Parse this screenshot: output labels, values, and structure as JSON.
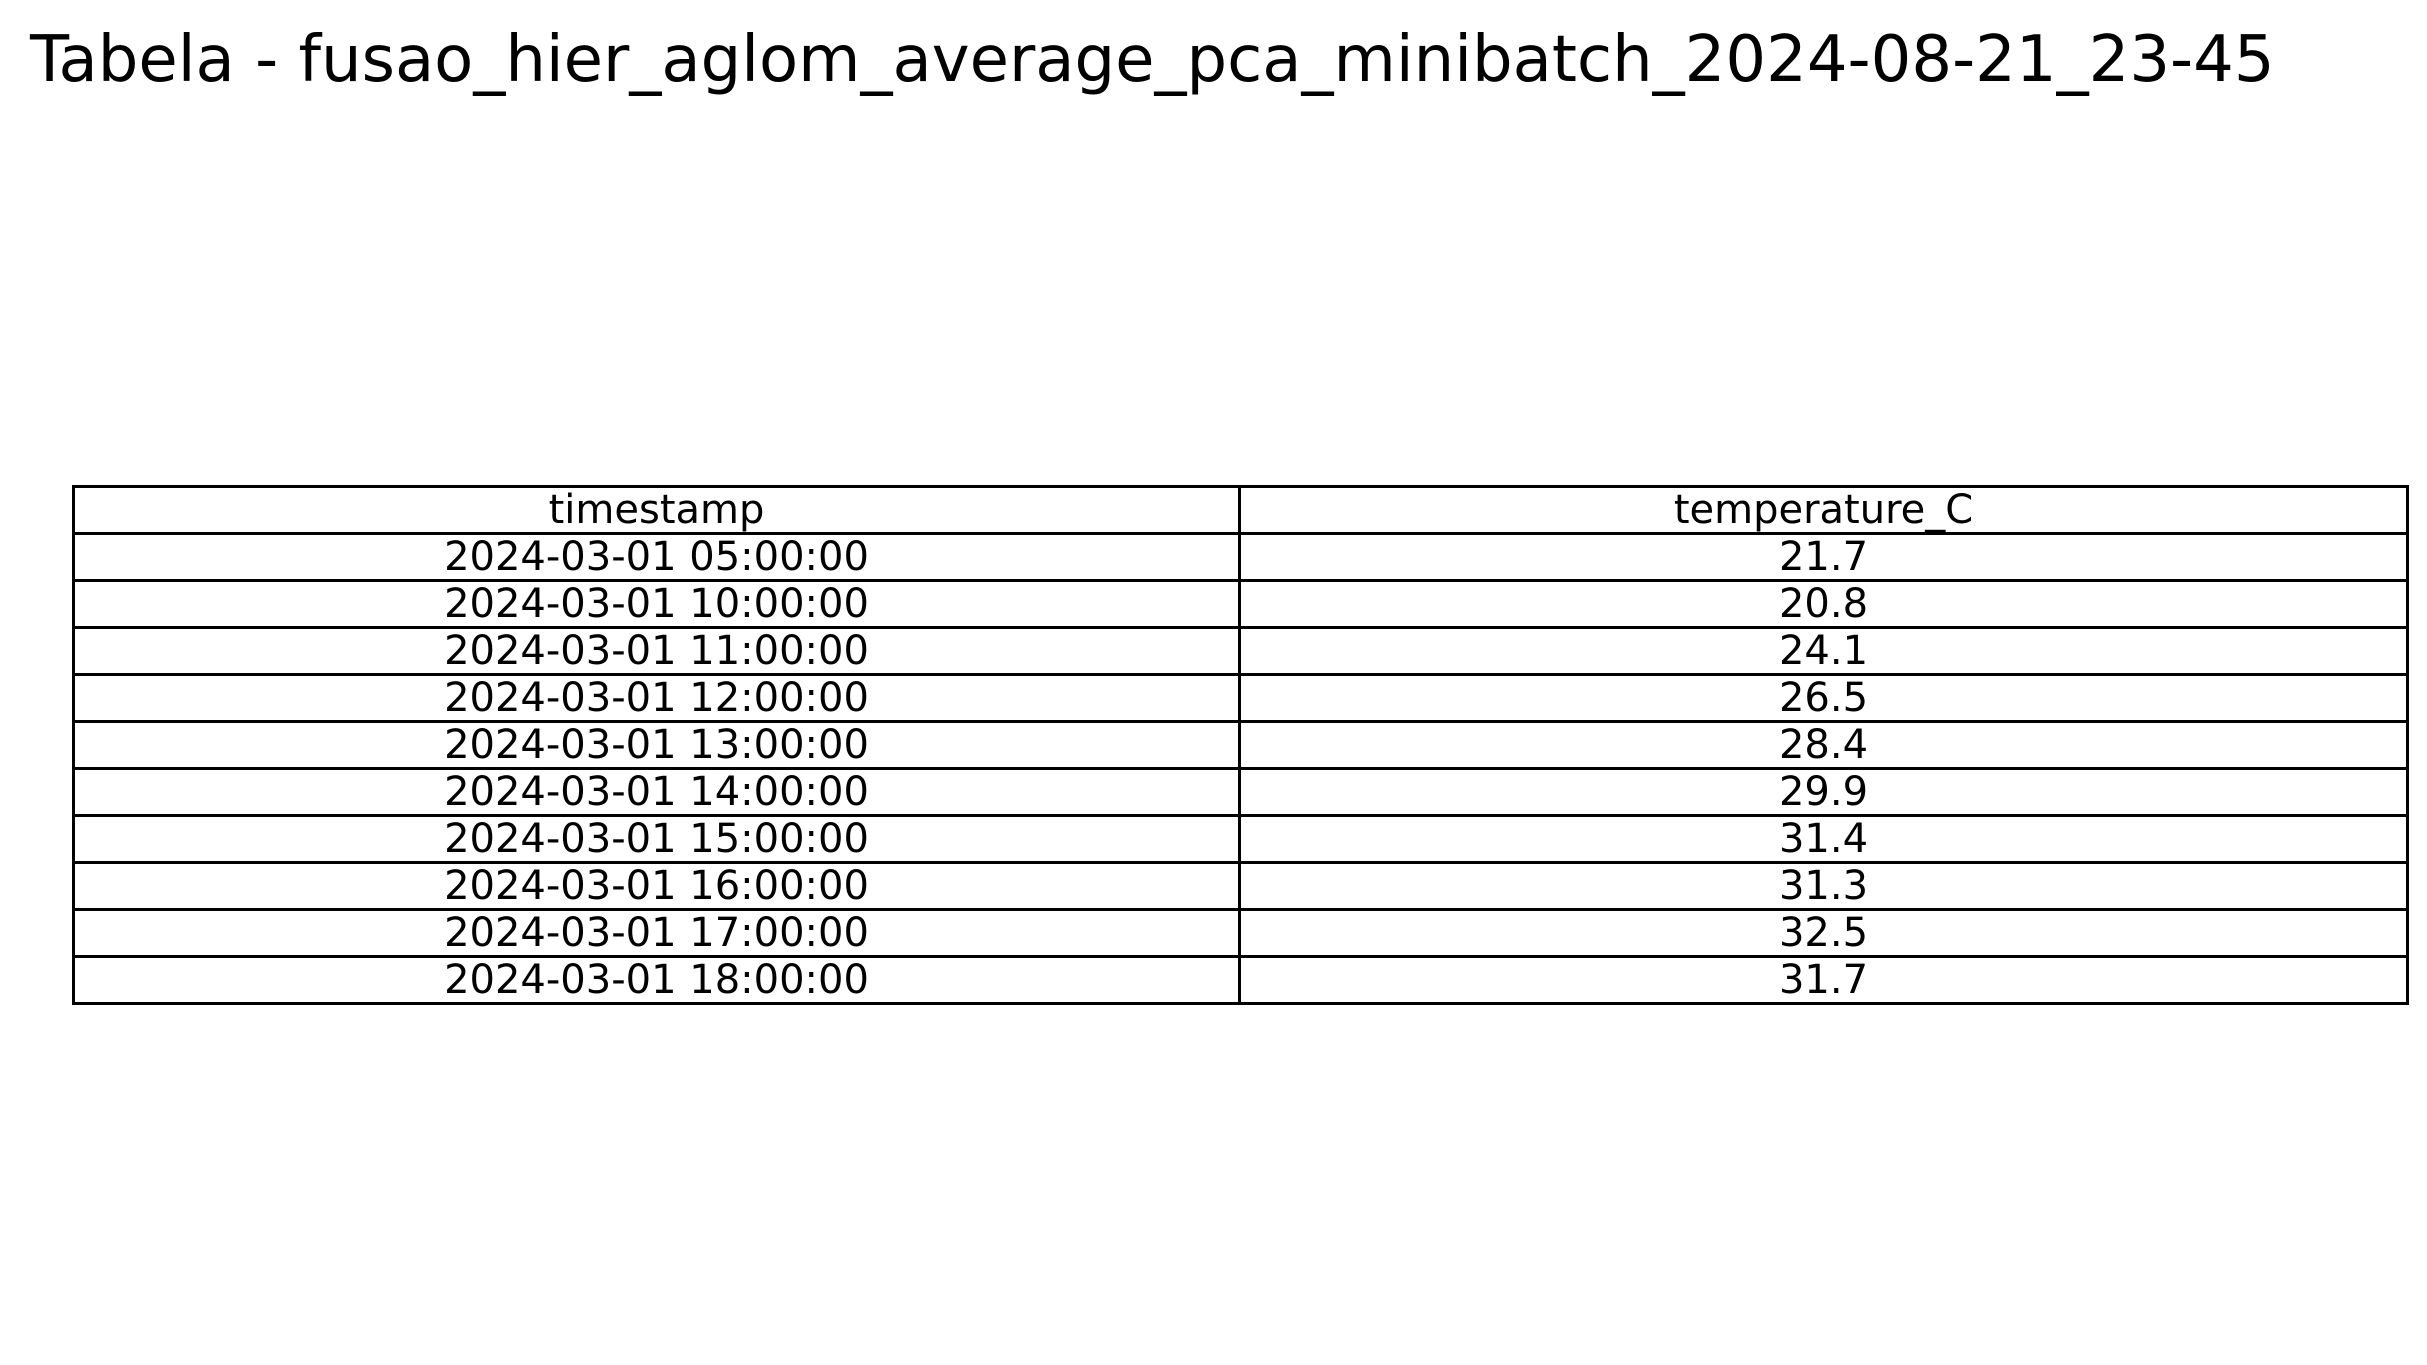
{
  "chart_data": {
    "type": "table",
    "title": "Tabela - fusao_hier_aglom_average_pca_minibatch_2024-08-21_23-45",
    "columns": [
      "timestamp",
      "temperature_C"
    ],
    "rows": [
      [
        "2024-03-01 05:00:00",
        "21.7"
      ],
      [
        "2024-03-01 10:00:00",
        "20.8"
      ],
      [
        "2024-03-01 11:00:00",
        "24.1"
      ],
      [
        "2024-03-01 12:00:00",
        "26.5"
      ],
      [
        "2024-03-01 13:00:00",
        "28.4"
      ],
      [
        "2024-03-01 14:00:00",
        "29.9"
      ],
      [
        "2024-03-01 15:00:00",
        "31.4"
      ],
      [
        "2024-03-01 16:00:00",
        "31.3"
      ],
      [
        "2024-03-01 17:00:00",
        "32.5"
      ],
      [
        "2024-03-01 18:00:00",
        "31.7"
      ]
    ]
  }
}
